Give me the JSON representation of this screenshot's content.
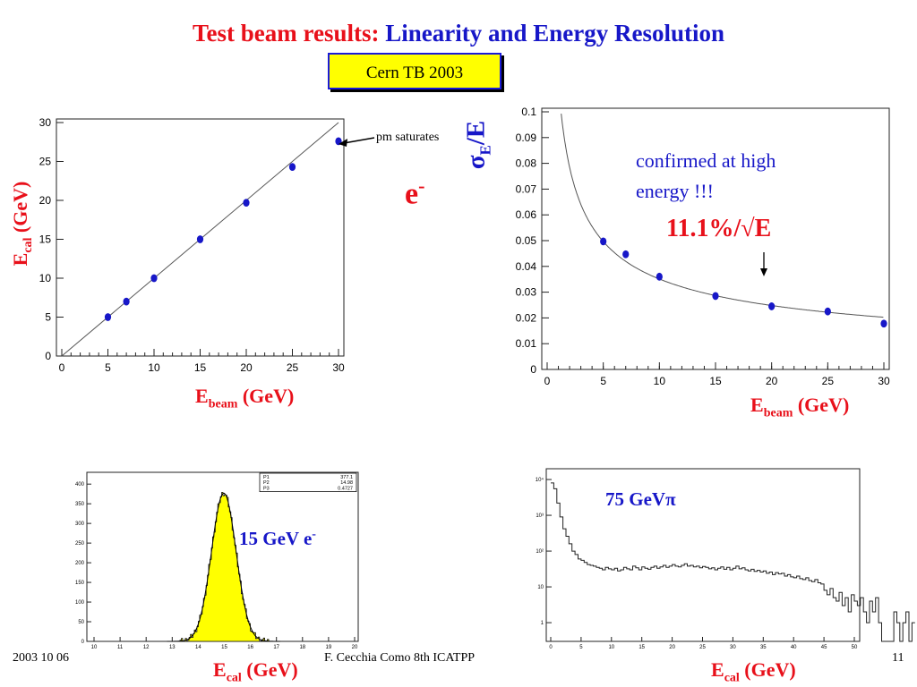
{
  "slide": {
    "title_red": "Test beam results:",
    "title_blue": "Linearity and Energy Resolution",
    "tag": "Cern TB 2003",
    "particle_main": "e",
    "particle_sup": "-",
    "annotation_pm": "pm saturates",
    "resolution": "11.1%/√E",
    "note": "confirmed at high energy !!!",
    "ylabel_left_main": "E",
    "ylabel_left_sub": "cal",
    "ylabel_left_unit": "(GeV)",
    "ylabel_right_main1": "σ",
    "ylabel_right_sub": "E",
    "ylabel_right_main2": "/E",
    "xlabel_left_main": "E",
    "xlabel_left_sub": "beam",
    "xlabel_left_unit": "(GeV)",
    "xlabel_right_main": "E",
    "xlabel_right_sub": "beam",
    "xlabel_right_unit": "(GeV)",
    "hist1_label_main": "15 GeV e",
    "hist1_label_sup": "-",
    "hist2_label": "75 GeVπ",
    "xlabel_hist1_main": "E",
    "xlabel_hist1_sub": "cal",
    "xlabel_hist1_unit": "(GeV)",
    "xlabel_hist2_main": "E",
    "xlabel_hist2_sub": "cal",
    "xlabel_hist2_unit": "(GeV)",
    "footer_date": "2003 10 06",
    "footer_author": "F. Cecchia  Como  8th ICATPP",
    "footer_page": "11"
  },
  "colors": {
    "title_red": "#e8101a",
    "title_blue": "#1717c8",
    "tag_fill": "#ffff00",
    "marker": "#1717c8",
    "hist_fill": "#ffff00"
  },
  "chart_data": [
    {
      "type": "scatter",
      "id": "linearity",
      "x": [
        5,
        7,
        10,
        15,
        20,
        25,
        30
      ],
      "y": [
        5.0,
        7.0,
        10.0,
        15.0,
        19.7,
        24.3,
        27.6
      ],
      "fit": {
        "kind": "line",
        "slope": 1.0,
        "intercept": 0.0
      },
      "xlim": [
        0,
        30
      ],
      "ylim": [
        0,
        30
      ],
      "xticks": [
        0,
        5,
        10,
        15,
        20,
        25,
        30
      ],
      "yticks": [
        0,
        5,
        10,
        15,
        20,
        25,
        30
      ],
      "grid": false
    },
    {
      "type": "scatter",
      "id": "resolution",
      "x": [
        5,
        7,
        10,
        15,
        20,
        25,
        30
      ],
      "y": [
        0.0497,
        0.0447,
        0.036,
        0.0285,
        0.0245,
        0.0225,
        0.0178
      ],
      "fit": {
        "kind": "a/sqrt(E) (+) b",
        "a": 0.111,
        "b": 0.0
      },
      "xlim": [
        0,
        30
      ],
      "ylim": [
        0,
        0.1
      ],
      "xticks": [
        0,
        5,
        10,
        15,
        20,
        25,
        30
      ],
      "yticks": [
        0,
        0.01,
        0.02,
        0.03,
        0.04,
        0.05,
        0.06,
        0.07,
        0.08,
        0.09,
        0.1
      ],
      "grid": false
    },
    {
      "type": "area",
      "id": "hist-15gev-electrons",
      "xlim": [
        10,
        20
      ],
      "ylim": [
        0,
        430
      ],
      "xticks": [
        10,
        11,
        12,
        13,
        14,
        15,
        16,
        17,
        18,
        19,
        20
      ],
      "yticks": [
        0,
        50,
        100,
        150,
        200,
        250,
        300,
        350,
        400
      ],
      "gaussian_fit": {
        "amplitude": 377.1,
        "mean": 14.98,
        "sigma": 0.4727
      },
      "stats_box": [
        {
          "name": "P1",
          "value": "377.1"
        },
        {
          "name": "P2",
          "value": "14.98"
        },
        {
          "name": "P3",
          "value": "0.4727"
        }
      ]
    },
    {
      "type": "area",
      "id": "hist-75gev-pions",
      "log_y": true,
      "xlim": [
        0,
        50
      ],
      "ylim": [
        0.3,
        20000
      ],
      "xticks": [
        0,
        5,
        10,
        15,
        20,
        25,
        30,
        35,
        40,
        45,
        50
      ],
      "yticks": [
        1,
        10,
        100,
        1000,
        10000
      ],
      "ytick_labels": [
        "1",
        "10",
        "10²",
        "10³",
        "10⁴"
      ],
      "bin_width": 0.5,
      "counts": [
        8000,
        5500,
        2200,
        900,
        420,
        260,
        160,
        100,
        80,
        60,
        55,
        48,
        42,
        40,
        38,
        35,
        33,
        30,
        35,
        32,
        30,
        33,
        28,
        30,
        35,
        32,
        30,
        38,
        34,
        30,
        36,
        33,
        31,
        35,
        38,
        33,
        36,
        40,
        35,
        38,
        42,
        38,
        36,
        40,
        44,
        38,
        40,
        36,
        38,
        34,
        37,
        35,
        32,
        34,
        30,
        33,
        36,
        31,
        35,
        30,
        33,
        38,
        32,
        34,
        30,
        28,
        31,
        27,
        29,
        26,
        28,
        24,
        26,
        22,
        25,
        23,
        24,
        20,
        22,
        19,
        18,
        20,
        17,
        16,
        18,
        15,
        14,
        16,
        13,
        12,
        8,
        6,
        9,
        5,
        4,
        7,
        3,
        5,
        2,
        6,
        4,
        3,
        5,
        2,
        1,
        4,
        2,
        5,
        1,
        0,
        0,
        0,
        0,
        2,
        1,
        0,
        1,
        2,
        0,
        1
      ]
    }
  ]
}
